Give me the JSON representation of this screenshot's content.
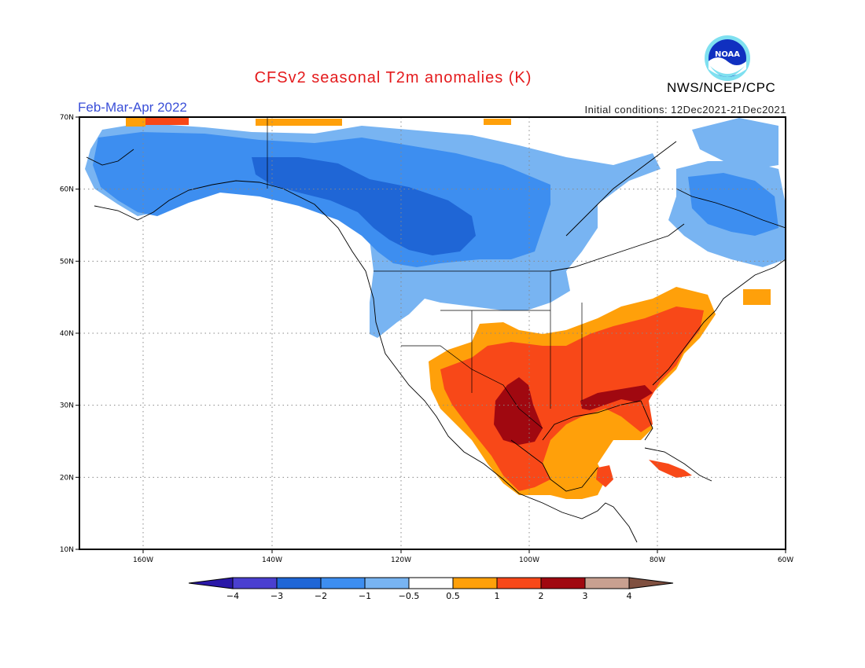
{
  "header": {
    "title": "CFSv2 seasonal T2m anomalies (K)",
    "period": "Feb-Mar-Apr 2022",
    "initial_conditions": "Initial conditions: 12Dec2021-21Dec2021",
    "agency": "NWS/NCEP/CPC",
    "logo_text": "NOAA"
  },
  "map": {
    "lat_labels": [
      "70N",
      "60N",
      "50N",
      "40N",
      "30N",
      "20N",
      "10N"
    ],
    "lon_labels": [
      "160W",
      "140W",
      "120W",
      "100W",
      "80W",
      "60W"
    ],
    "grid": true
  },
  "colorbar": {
    "labels": [
      "-4",
      "-3",
      "-2",
      "-1",
      "-0.5",
      "0.5",
      "1",
      "2",
      "3",
      "4"
    ],
    "colors": [
      "#2a18a8",
      "#4a3fd0",
      "#1f66d6",
      "#3d8ef0",
      "#78b4f2",
      "#ffffff",
      "#ffa00a",
      "#f84818",
      "#a00810",
      "#c8a090",
      "#805040"
    ]
  },
  "colors": {
    "cold_1": "#78b4f2",
    "cold_2": "#3d8ef0",
    "cold_3": "#1f66d6",
    "warm_1": "#ffa00a",
    "warm_2": "#f84818",
    "warm_3": "#a00810"
  }
}
